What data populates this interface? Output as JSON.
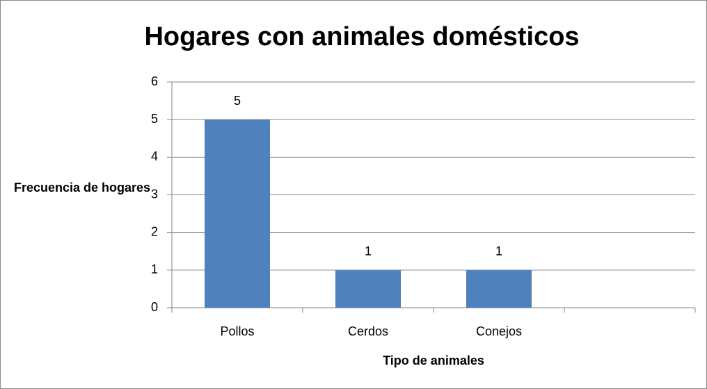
{
  "chart_data": {
    "type": "bar",
    "title": "Hogares con animales domésticos",
    "x_label": "Tipo de animales",
    "y_label": "Frecuencia de hogares",
    "categories": [
      "Pollos",
      "Cerdos",
      "Conejos",
      null
    ],
    "values": [
      5,
      1,
      1,
      null
    ],
    "color": "#4f81bd",
    "ylim": [
      0,
      6
    ],
    "yticks": [
      0,
      1,
      2,
      3,
      4,
      5,
      6
    ],
    "grid": true
  }
}
